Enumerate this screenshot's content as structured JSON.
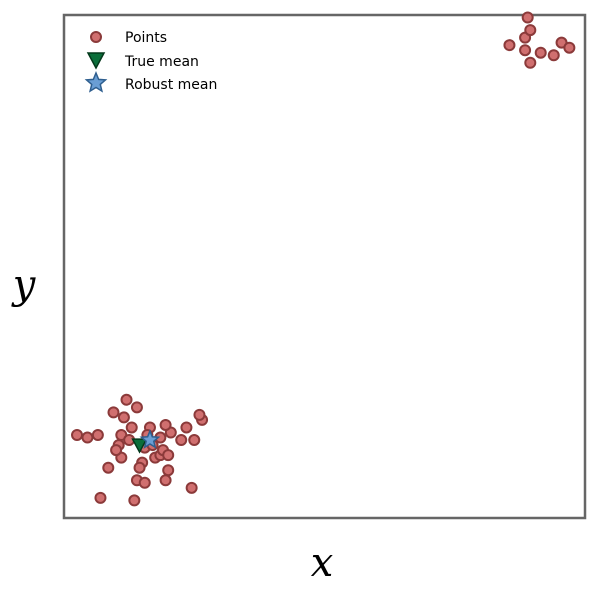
{
  "chart_data": {
    "type": "scatter",
    "title": "",
    "xlabel": "x",
    "ylabel": "y",
    "xlim": [
      0,
      10
    ],
    "ylim": [
      0,
      10
    ],
    "grid": false,
    "ticks": false,
    "legend_position": "top-left",
    "series": [
      {
        "name": "Points",
        "marker": "circle",
        "x": [
          0.25,
          0.45,
          0.65,
          0.95,
          1.2,
          1.4,
          1.15,
          1.3,
          1.05,
          1.55,
          1.65,
          1.85,
          2.05,
          2.25,
          2.35,
          1.75,
          1.5,
          1.1,
          1.45,
          1.85,
          2.45,
          1.95,
          2.0,
          1.0,
          0.85,
          1.1,
          1.7,
          1.6,
          1.4,
          1.55,
          1.25,
          1.9,
          2.65,
          0.7,
          1.35,
          2.5,
          2.0,
          1.95,
          2.6,
          8.55,
          8.85,
          8.95,
          8.9,
          8.85,
          9.15,
          9.55,
          9.4,
          9.7,
          8.95
        ],
        "y": [
          1.65,
          1.6,
          1.65,
          2.1,
          2.35,
          2.2,
          2.0,
          1.8,
          1.45,
          1.4,
          1.8,
          1.6,
          1.7,
          1.55,
          1.8,
          1.2,
          1.1,
          1.2,
          1.0,
          1.25,
          0.6,
          0.75,
          0.95,
          1.35,
          1.0,
          1.65,
          1.45,
          1.65,
          0.75,
          0.7,
          1.55,
          1.35,
          1.95,
          0.4,
          0.35,
          1.55,
          1.25,
          1.85,
          2.05,
          9.4,
          9.55,
          9.7,
          9.95,
          9.3,
          9.25,
          9.45,
          9.2,
          9.35,
          9.05
        ]
      },
      {
        "name": "True mean",
        "marker": "triangle-down",
        "x": [
          1.45
        ],
        "y": [
          1.45
        ]
      },
      {
        "name": "Robust mean",
        "marker": "star",
        "x": [
          1.65
        ],
        "y": [
          1.55
        ]
      }
    ]
  },
  "colors": {
    "points_fill": "#d06f6f",
    "points_edge": "#8b3a3a",
    "true_mean_fill": "#0b6e3a",
    "true_mean_edge": "#03381b",
    "robust_mean_fill": "#6a9ed4",
    "robust_mean_edge": "#2f5f8f",
    "frame": "#666666"
  }
}
